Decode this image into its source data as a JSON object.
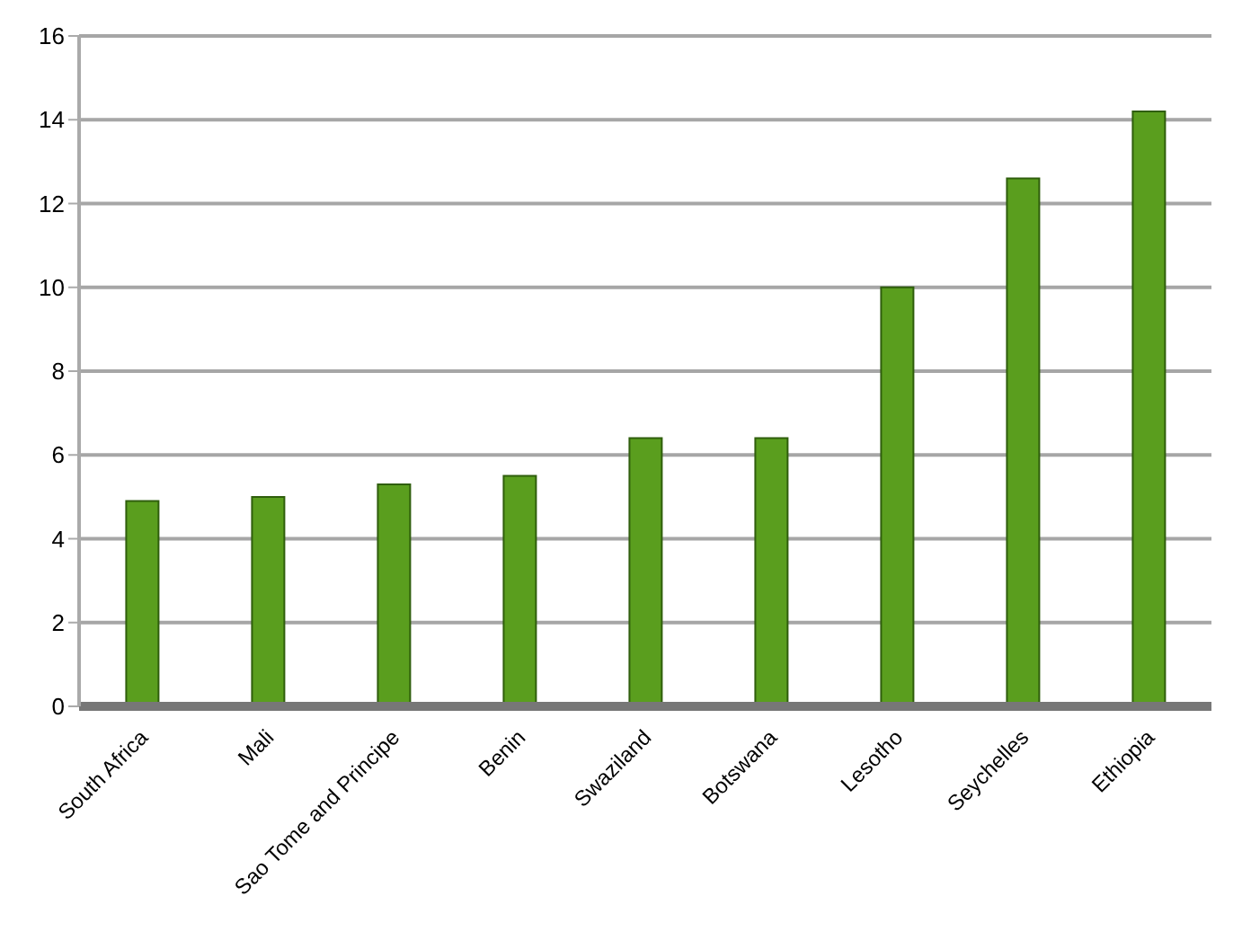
{
  "chart_data": {
    "type": "bar",
    "categories": [
      "South Africa",
      "Mali",
      "Sao Tome and Principe",
      "Benin",
      "Swaziland",
      "Botswana",
      "Lesotho",
      "Seychelles",
      "Ethiopia"
    ],
    "values": [
      4.9,
      5.0,
      5.3,
      5.5,
      6.4,
      6.4,
      10.0,
      12.6,
      14.2
    ],
    "color": "#5a9e1e",
    "ylim": [
      0,
      16
    ],
    "yticks": [
      0,
      2,
      4,
      6,
      8,
      10,
      12,
      14,
      16
    ],
    "grid": "y"
  }
}
